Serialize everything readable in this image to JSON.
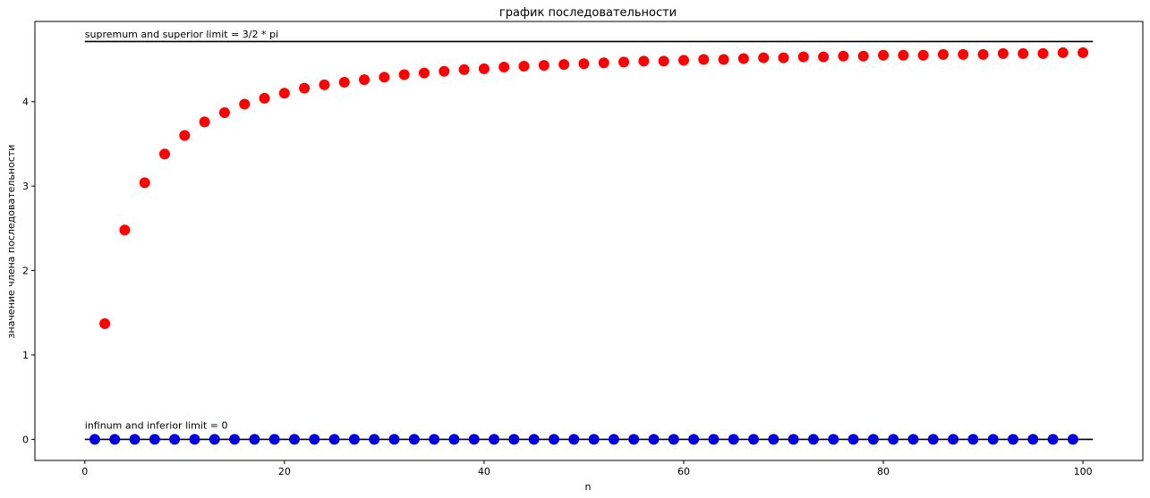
{
  "chart_data": {
    "type": "scatter",
    "title": "график последовательности",
    "xlabel": "n",
    "ylabel": "значение члена последовательности",
    "xlim": [
      -5,
      106
    ],
    "ylim": [
      -0.25,
      4.95
    ],
    "xticks": [
      0,
      20,
      40,
      60,
      80,
      100
    ],
    "yticks": [
      0,
      1,
      2,
      3,
      4
    ],
    "grid": false,
    "colors": {
      "even_series": "#ff0000",
      "odd_series": "#0000dd",
      "lines": "#000000"
    },
    "annotations": [
      {
        "text": "supremum and superior limit = 3/2 * pi",
        "x": 0,
        "y": 4.8
      },
      {
        "text": "infinum and inferior limit = 0",
        "x": 0,
        "y": 0.17
      }
    ],
    "hlines": [
      {
        "y": 4.7124,
        "x_start": 0,
        "x_end": 101
      },
      {
        "y": 0,
        "x_start": 0,
        "x_end": 101
      }
    ],
    "series": [
      {
        "color": "#ff0000",
        "x": [
          2,
          4,
          6,
          8,
          10,
          12,
          14,
          16,
          18,
          20,
          22,
          24,
          26,
          28,
          30,
          32,
          34,
          36,
          38,
          40,
          42,
          44,
          46,
          48,
          50,
          52,
          54,
          56,
          58,
          60,
          62,
          64,
          66,
          68,
          70,
          72,
          74,
          76,
          78,
          80,
          82,
          84,
          86,
          88,
          90,
          92,
          94,
          96,
          98,
          100
        ],
        "y": [
          1.37,
          2.48,
          3.04,
          3.38,
          3.6,
          3.76,
          3.87,
          3.97,
          4.04,
          4.1,
          4.16,
          4.2,
          4.23,
          4.26,
          4.29,
          4.32,
          4.34,
          4.36,
          4.38,
          4.39,
          4.41,
          4.42,
          4.43,
          4.44,
          4.45,
          4.46,
          4.47,
          4.48,
          4.48,
          4.49,
          4.5,
          4.5,
          4.51,
          4.52,
          4.52,
          4.53,
          4.53,
          4.54,
          4.54,
          4.55,
          4.55,
          4.55,
          4.56,
          4.56,
          4.56,
          4.57,
          4.57,
          4.57,
          4.58,
          4.58
        ]
      },
      {
        "color": "#0000dd",
        "x": [
          1,
          3,
          5,
          7,
          9,
          11,
          13,
          15,
          17,
          19,
          21,
          23,
          25,
          27,
          29,
          31,
          33,
          35,
          37,
          39,
          41,
          43,
          45,
          47,
          49,
          51,
          53,
          55,
          57,
          59,
          61,
          63,
          65,
          67,
          69,
          71,
          73,
          75,
          77,
          79,
          81,
          83,
          85,
          87,
          89,
          91,
          93,
          95,
          97,
          99
        ],
        "y": [
          0,
          0,
          0,
          0,
          0,
          0,
          0,
          0,
          0,
          0,
          0,
          0,
          0,
          0,
          0,
          0,
          0,
          0,
          0,
          0,
          0,
          0,
          0,
          0,
          0,
          0,
          0,
          0,
          0,
          0,
          0,
          0,
          0,
          0,
          0,
          0,
          0,
          0,
          0,
          0,
          0,
          0,
          0,
          0,
          0,
          0,
          0,
          0,
          0,
          0
        ]
      }
    ]
  }
}
